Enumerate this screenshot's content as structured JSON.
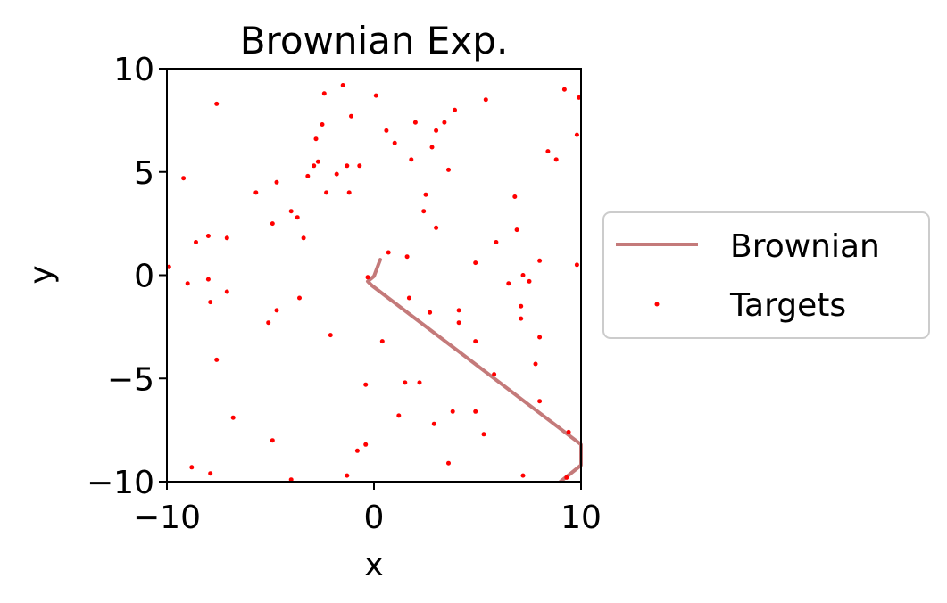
{
  "chart_data": {
    "type": "scatter",
    "title": "Brownian Exp.",
    "xlabel": "x",
    "ylabel": "y",
    "xlim": [
      -10,
      10
    ],
    "ylim": [
      -10,
      10
    ],
    "xticks": [
      -10,
      0,
      10
    ],
    "xtick_labels": [
      "−10",
      "0",
      "10"
    ],
    "yticks": [
      -10,
      -5,
      0,
      5,
      10
    ],
    "ytick_labels": [
      "−10",
      "−5",
      "0",
      "5",
      "10"
    ],
    "grid": false,
    "legend_position": "outside-right",
    "legend": [
      {
        "label": "Brownian",
        "kind": "line",
        "color": "#c47a7a"
      },
      {
        "label": "Targets",
        "kind": "point",
        "color": "#ff0000"
      }
    ],
    "series": [
      {
        "name": "Brownian",
        "type": "line",
        "color": "#c47a7a",
        "points": [
          [
            0.3,
            0.75
          ],
          [
            0.0,
            -0.05
          ],
          [
            -0.3,
            -0.3
          ],
          [
            -0.1,
            -0.5
          ],
          [
            10.0,
            -8.2
          ],
          [
            10.0,
            -9.2
          ],
          [
            9.0,
            -10.0
          ]
        ]
      },
      {
        "name": "Targets",
        "type": "scatter",
        "color": "#ff0000",
        "points": [
          [
            -9.9,
            0.4
          ],
          [
            -9.2,
            4.7
          ],
          [
            -9.0,
            -0.4
          ],
          [
            -8.8,
            -9.3
          ],
          [
            -8.6,
            1.6
          ],
          [
            -8.0,
            1.9
          ],
          [
            -8.0,
            -0.2
          ],
          [
            -7.9,
            -1.3
          ],
          [
            -7.9,
            -9.6
          ],
          [
            -7.6,
            8.3
          ],
          [
            -7.6,
            -4.1
          ],
          [
            -7.1,
            1.8
          ],
          [
            -7.1,
            -0.8
          ],
          [
            -6.8,
            -6.9
          ],
          [
            -5.7,
            4.0
          ],
          [
            -4.9,
            2.5
          ],
          [
            -4.9,
            -8.0
          ],
          [
            -4.7,
            4.5
          ],
          [
            -4.7,
            -1.7
          ],
          [
            -5.1,
            -2.3
          ],
          [
            -4.0,
            3.1
          ],
          [
            -3.7,
            2.8
          ],
          [
            -3.6,
            -1.1
          ],
          [
            -3.4,
            1.8
          ],
          [
            -3.2,
            4.8
          ],
          [
            -2.9,
            5.3
          ],
          [
            -2.8,
            6.6
          ],
          [
            -2.7,
            5.5
          ],
          [
            -2.5,
            7.3
          ],
          [
            -2.4,
            8.8
          ],
          [
            -2.3,
            4.0
          ],
          [
            -2.1,
            -2.9
          ],
          [
            -1.8,
            4.9
          ],
          [
            -1.5,
            9.2
          ],
          [
            -1.3,
            5.3
          ],
          [
            -1.2,
            4.0
          ],
          [
            -1.1,
            7.7
          ],
          [
            -0.7,
            5.3
          ],
          [
            -0.8,
            -8.5
          ],
          [
            -0.4,
            -8.2
          ],
          [
            -0.4,
            -5.3
          ],
          [
            -0.3,
            -0.1
          ],
          [
            -1.3,
            -9.7
          ],
          [
            -4.0,
            -9.9
          ],
          [
            0.1,
            8.7
          ],
          [
            0.4,
            -3.2
          ],
          [
            0.6,
            7.0
          ],
          [
            0.7,
            1.1
          ],
          [
            1.0,
            6.4
          ],
          [
            1.2,
            -6.8
          ],
          [
            1.5,
            -5.2
          ],
          [
            1.6,
            0.9
          ],
          [
            1.8,
            5.6
          ],
          [
            1.7,
            -1.1
          ],
          [
            2.0,
            7.4
          ],
          [
            2.2,
            -5.2
          ],
          [
            2.4,
            3.1
          ],
          [
            2.5,
            3.9
          ],
          [
            2.7,
            -1.8
          ],
          [
            2.8,
            6.2
          ],
          [
            2.9,
            -7.2
          ],
          [
            3.0,
            7.0
          ],
          [
            3.0,
            2.3
          ],
          [
            3.4,
            7.4
          ],
          [
            3.6,
            5.1
          ],
          [
            3.9,
            8.0
          ],
          [
            3.8,
            -6.6
          ],
          [
            4.1,
            -1.7
          ],
          [
            4.1,
            -2.3
          ],
          [
            3.6,
            -9.1
          ],
          [
            4.9,
            0.6
          ],
          [
            4.9,
            -6.6
          ],
          [
            4.9,
            -3.2
          ],
          [
            5.4,
            8.5
          ],
          [
            5.3,
            -7.7
          ],
          [
            5.8,
            -4.8
          ],
          [
            5.9,
            1.6
          ],
          [
            6.5,
            -0.4
          ],
          [
            6.8,
            3.8
          ],
          [
            6.9,
            2.2
          ],
          [
            7.1,
            -1.5
          ],
          [
            7.1,
            -2.1
          ],
          [
            7.2,
            0.0
          ],
          [
            7.2,
            -9.7
          ],
          [
            7.5,
            -0.3
          ],
          [
            7.8,
            -4.3
          ],
          [
            8.0,
            -6.1
          ],
          [
            8.0,
            0.7
          ],
          [
            8.0,
            -3.0
          ],
          [
            8.4,
            6.0
          ],
          [
            8.8,
            5.6
          ],
          [
            9.2,
            9.0
          ],
          [
            9.4,
            -7.6
          ],
          [
            9.3,
            -9.8
          ],
          [
            9.8,
            0.5
          ],
          [
            9.8,
            6.8
          ],
          [
            9.9,
            8.6
          ]
        ]
      }
    ]
  }
}
